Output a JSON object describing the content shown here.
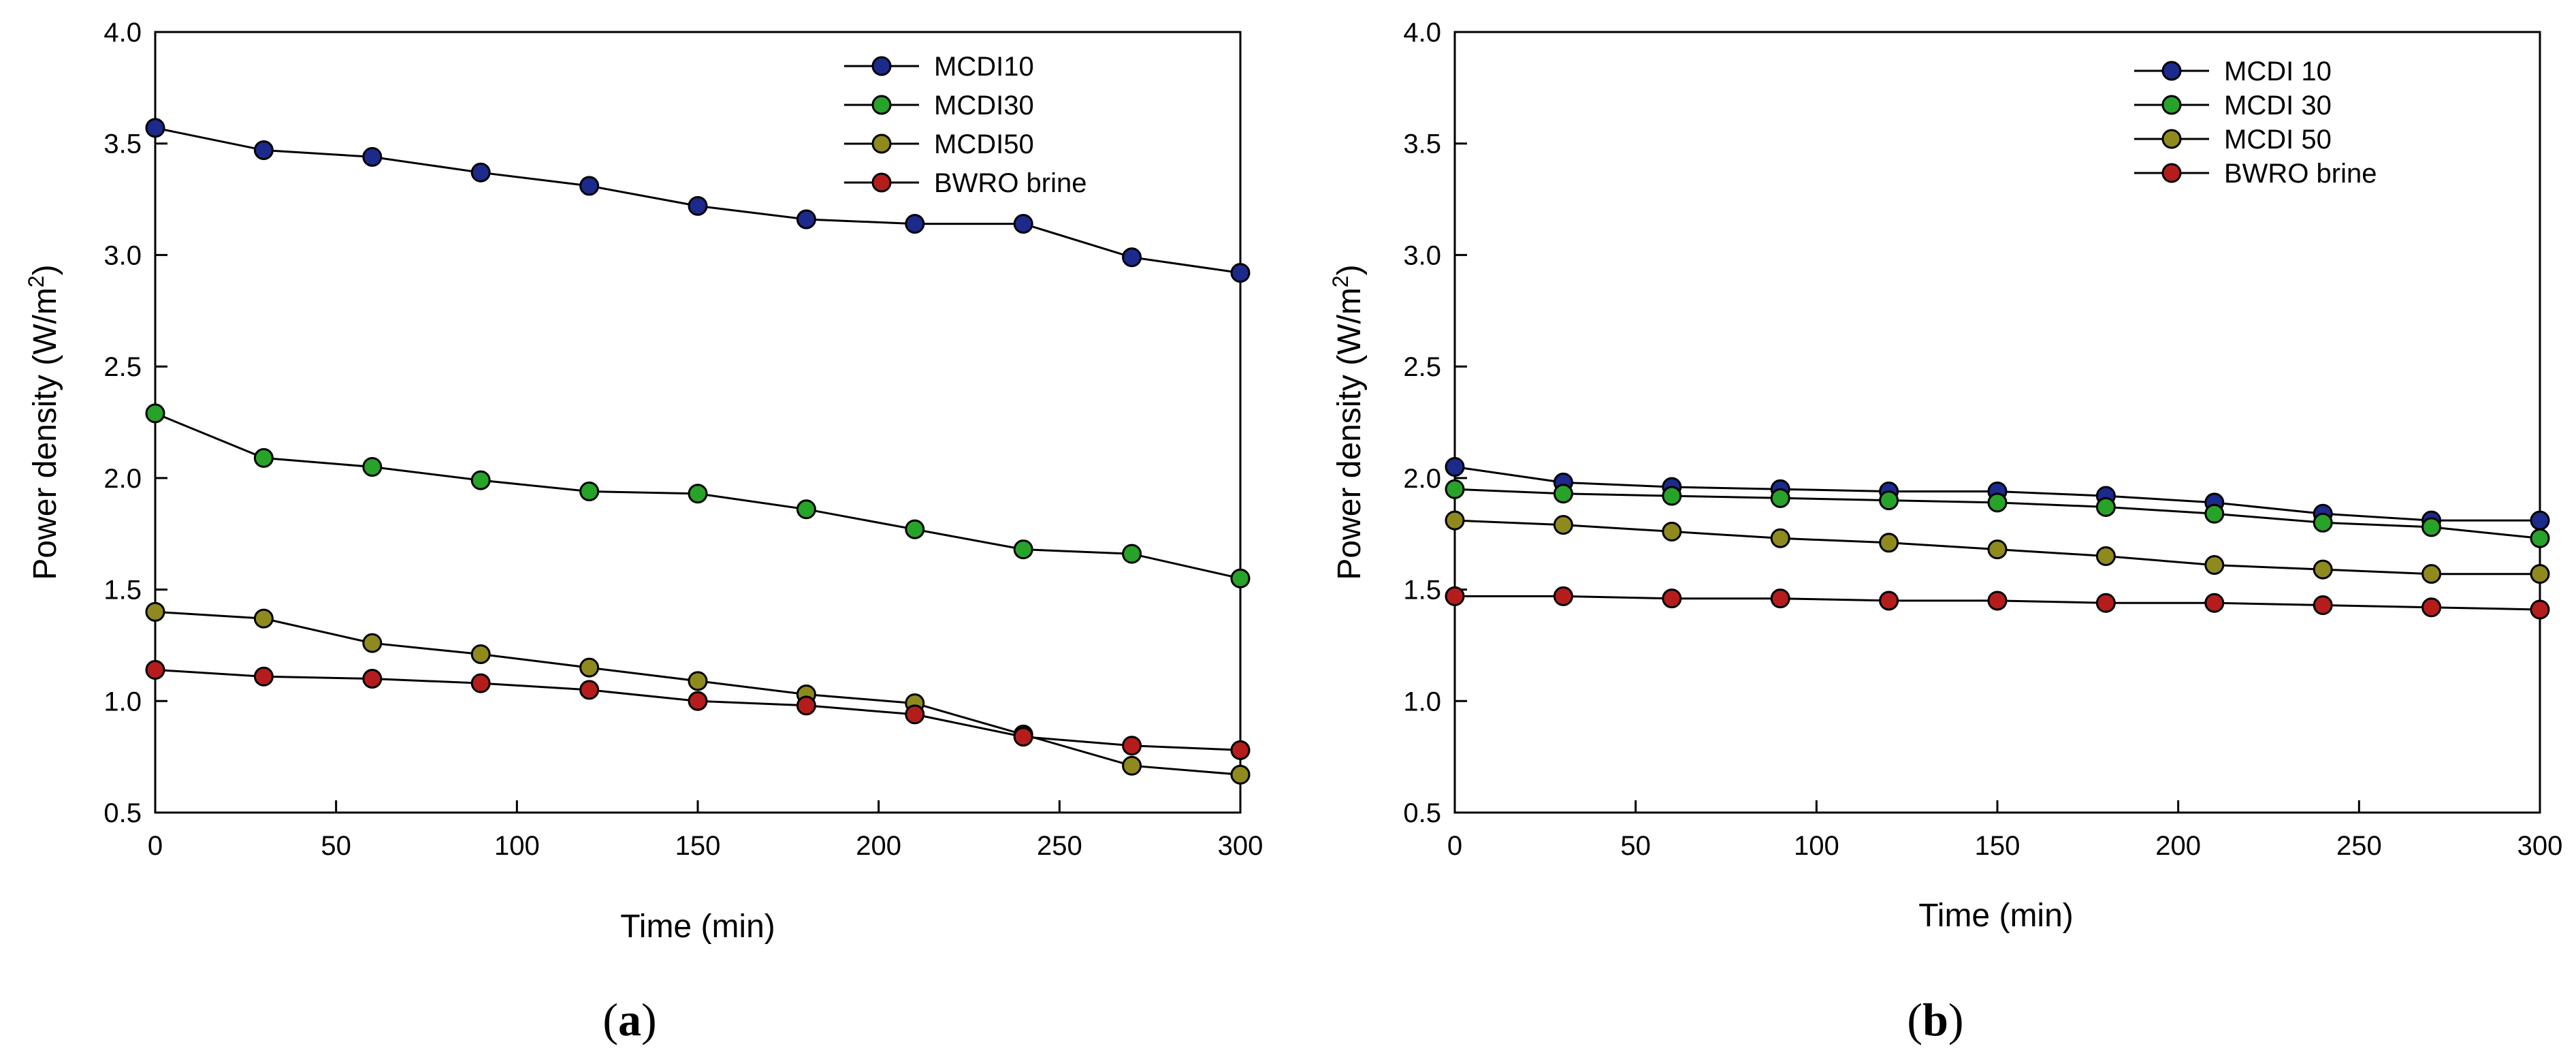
{
  "chart_data": [
    {
      "type": "line",
      "panel": "a",
      "caption_letter": "a",
      "xlabel": "Time (min)",
      "ylabel": "Power density (W/m",
      "ylabel_sup": "2",
      "ylabel_close": ")",
      "xlim": [
        0,
        300
      ],
      "ylim": [
        0.5,
        4.0
      ],
      "xticks": [
        "0",
        "50",
        "100",
        "150",
        "200",
        "250",
        "300"
      ],
      "yticks": [
        "0.5",
        "1.0",
        "1.5",
        "2.0",
        "2.5",
        "3.0",
        "3.5",
        "4.0"
      ],
      "x": [
        0,
        30,
        60,
        90,
        120,
        150,
        180,
        210,
        240,
        270,
        300
      ],
      "legend_position": "top-right",
      "series": [
        {
          "name": "MCDI10",
          "color": "#1c2a8c",
          "values": [
            3.57,
            3.47,
            3.44,
            3.37,
            3.31,
            3.22,
            3.16,
            3.14,
            3.14,
            2.99,
            2.92
          ]
        },
        {
          "name": "MCDI30",
          "color": "#27a32a",
          "values": [
            2.29,
            2.09,
            2.05,
            1.99,
            1.94,
            1.93,
            1.86,
            1.77,
            1.68,
            1.66,
            1.55
          ]
        },
        {
          "name": "MCDI50",
          "color": "#8f8a1e",
          "values": [
            1.4,
            1.37,
            1.26,
            1.21,
            1.15,
            1.09,
            1.03,
            0.99,
            0.85,
            0.71,
            0.67
          ]
        },
        {
          "name": "BWRO brine",
          "color": "#b51d1d",
          "values": [
            1.14,
            1.11,
            1.1,
            1.08,
            1.05,
            1.0,
            0.98,
            0.94,
            0.84,
            0.8,
            0.78
          ]
        }
      ]
    },
    {
      "type": "line",
      "panel": "b",
      "caption_letter": "b",
      "xlabel": "Time (min)",
      "ylabel": "Power density (W/m",
      "ylabel_sup": "2",
      "ylabel_close": ")",
      "xlim": [
        0,
        300
      ],
      "ylim": [
        0.5,
        4.0
      ],
      "xticks": [
        "0",
        "50",
        "100",
        "150",
        "200",
        "250",
        "300"
      ],
      "yticks": [
        "0.5",
        "1.0",
        "1.5",
        "2.0",
        "2.5",
        "3.0",
        "3.5",
        "4.0"
      ],
      "x": [
        0,
        30,
        60,
        90,
        120,
        150,
        180,
        210,
        240,
        270,
        300
      ],
      "legend_position": "top-right",
      "series": [
        {
          "name": "MCDI 10",
          "color": "#1c2a8c",
          "values": [
            2.05,
            1.98,
            1.96,
            1.95,
            1.94,
            1.94,
            1.92,
            1.89,
            1.84,
            1.81,
            1.81
          ]
        },
        {
          "name": "MCDI 30",
          "color": "#27a32a",
          "values": [
            1.95,
            1.93,
            1.92,
            1.91,
            1.9,
            1.89,
            1.87,
            1.84,
            1.8,
            1.78,
            1.73
          ]
        },
        {
          "name": "MCDI 50",
          "color": "#8f8a1e",
          "values": [
            1.81,
            1.79,
            1.76,
            1.73,
            1.71,
            1.68,
            1.65,
            1.61,
            1.59,
            1.57,
            1.57
          ]
        },
        {
          "name": "BWRO brine",
          "color": "#b51d1d",
          "values": [
            1.47,
            1.47,
            1.46,
            1.46,
            1.45,
            1.45,
            1.44,
            1.44,
            1.43,
            1.42,
            1.41
          ]
        }
      ]
    }
  ]
}
